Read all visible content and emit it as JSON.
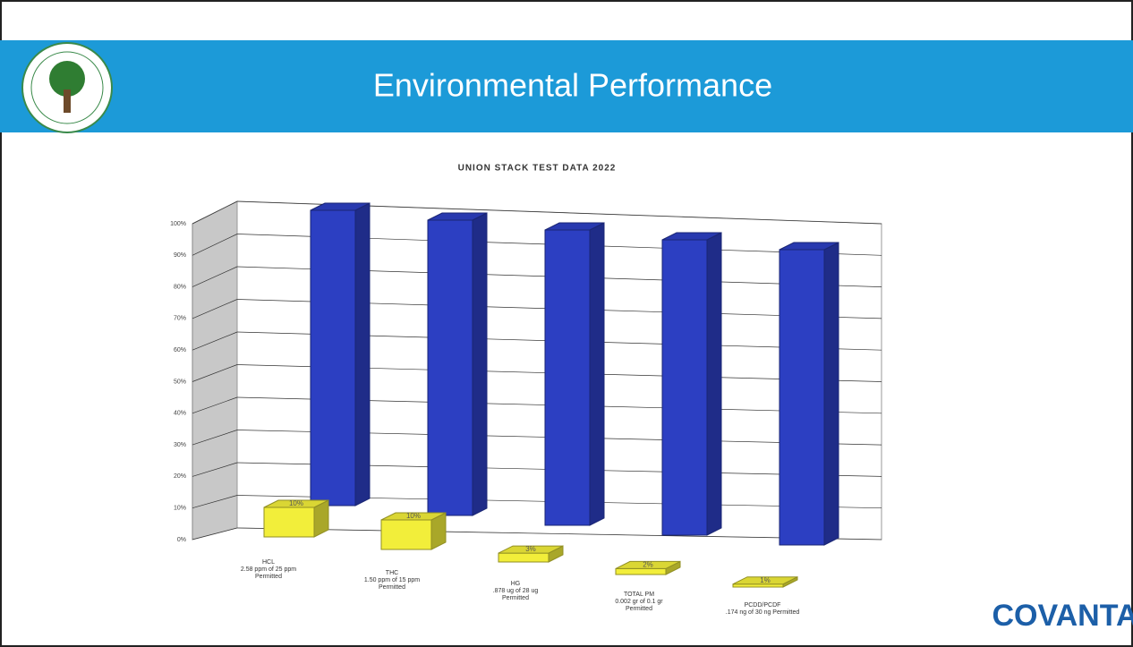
{
  "header": {
    "title": "Environmental Performance"
  },
  "chart_data": {
    "type": "bar3d",
    "title": "UNION STACK TEST DATA 2022",
    "categories": [
      [
        "HCL",
        "2.58 ppm of 25 ppm",
        "Permitted"
      ],
      [
        "THC",
        "1.50 ppm of 15 ppm",
        "Permitted"
      ],
      [
        "HG",
        ".878 ug of 28 ug",
        "Permitted"
      ],
      [
        "TOTAL PM",
        "0.002 gr of 0.1 gr",
        "Permitted"
      ],
      [
        "PCDD/PCDF",
        ".174 ng of 30 ng Permitted"
      ]
    ],
    "series": [
      {
        "color": "#f2ee3a",
        "values": [
          10,
          10,
          3,
          2,
          1
        ],
        "value_labels": [
          "10%",
          "10%",
          "3%",
          "2%",
          "1%"
        ]
      },
      {
        "color": "#2c3fc2",
        "values": [
          100,
          100,
          100,
          100,
          100
        ]
      }
    ],
    "ylim": [
      0,
      100
    ],
    "yticks": [
      {
        "value": 0,
        "label": "0%"
      },
      {
        "value": 10,
        "label": "10%"
      },
      {
        "value": 20,
        "label": "20%"
      },
      {
        "value": 30,
        "label": "30%"
      },
      {
        "value": 40,
        "label": "40%"
      },
      {
        "value": 50,
        "label": "50%"
      },
      {
        "value": 60,
        "label": "60%"
      },
      {
        "value": 70,
        "label": "70%"
      },
      {
        "value": 80,
        "label": "80%"
      },
      {
        "value": 90,
        "label": "90%"
      },
      {
        "value": 100,
        "label": "100%"
      }
    ],
    "grid": true
  },
  "footer": {
    "logo": "COVANTA"
  }
}
